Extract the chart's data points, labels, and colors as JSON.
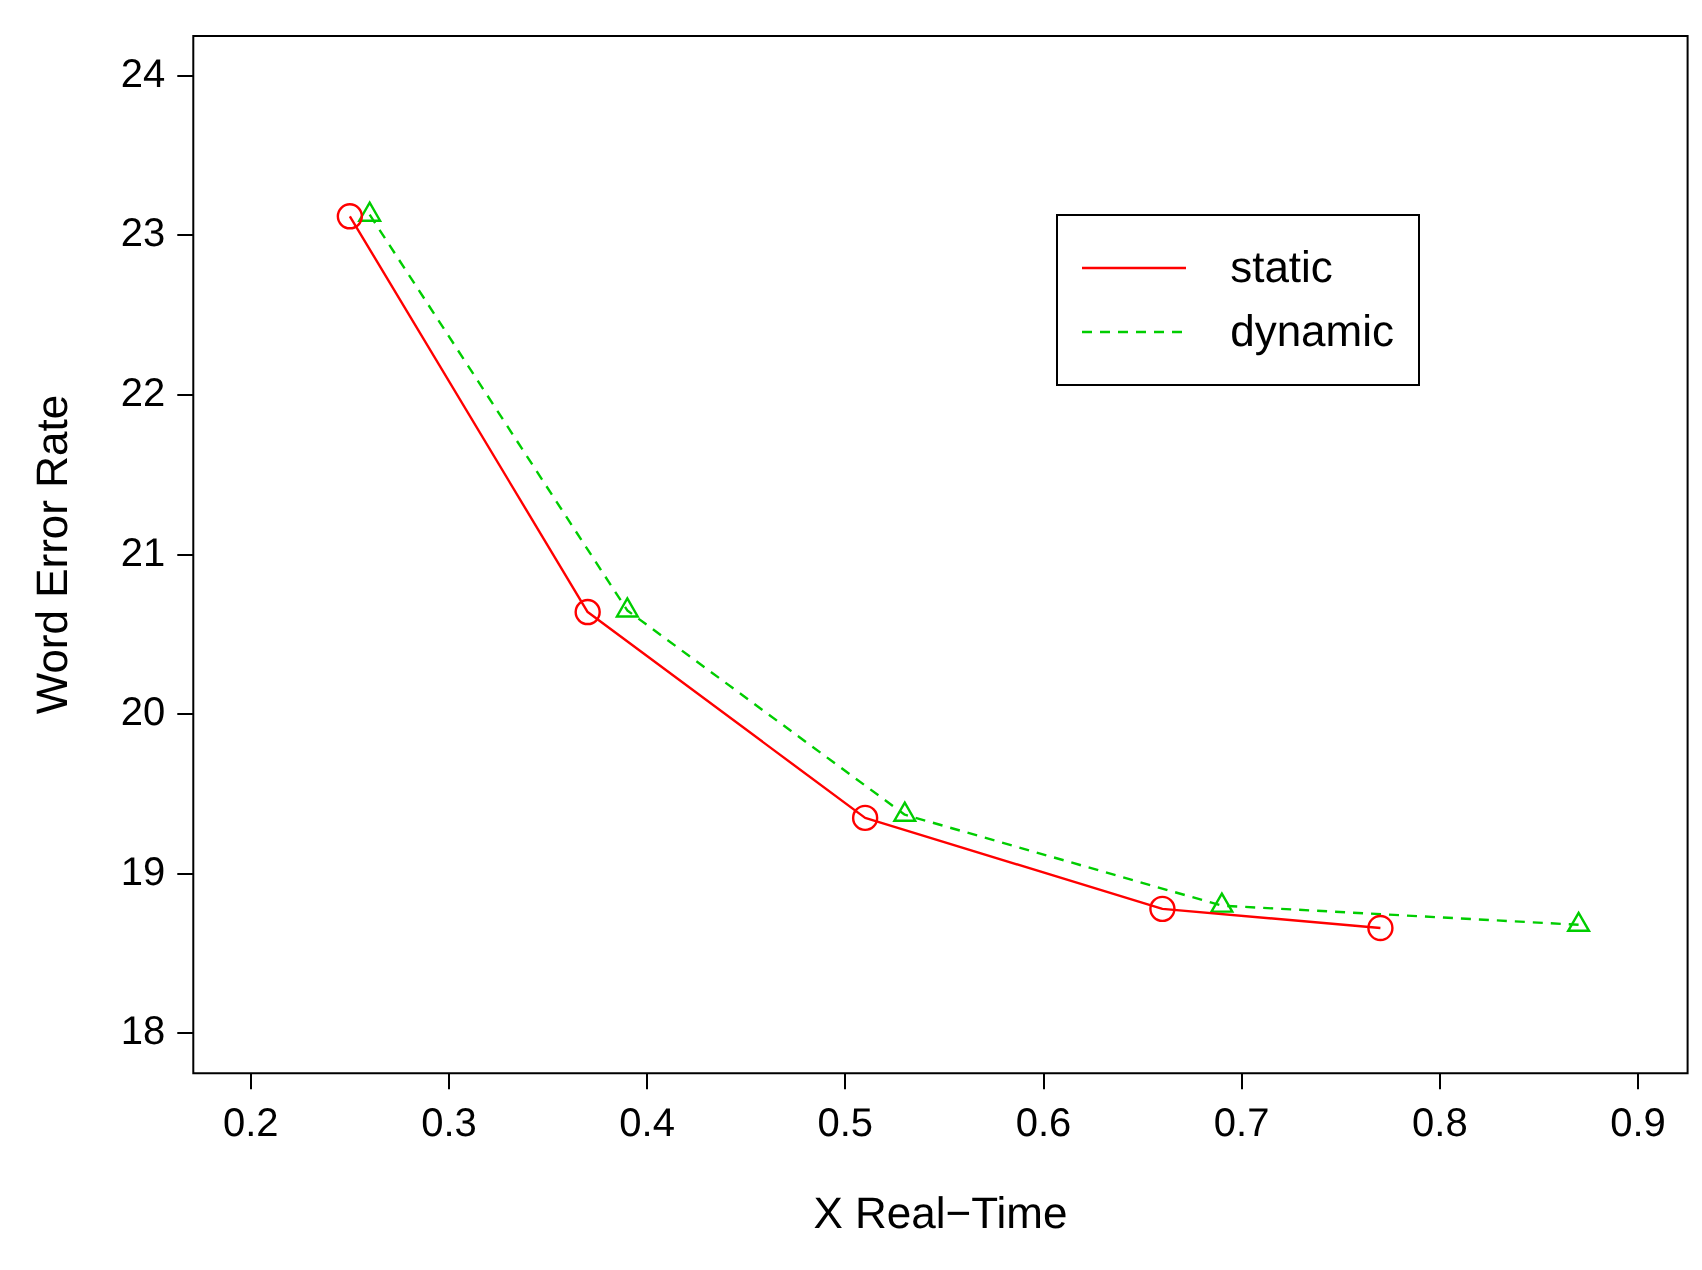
{
  "chart_data": {
    "type": "line",
    "xlabel": "X Real−Time",
    "ylabel": "Word Error Rate",
    "xlim": [
      0.171,
      0.925
    ],
    "xticks": [
      0.2,
      0.3,
      0.4,
      0.5,
      0.6,
      0.7,
      0.8,
      0.9
    ],
    "ylim": [
      17.75,
      24.25
    ],
    "yticks": [
      18,
      19,
      20,
      21,
      22,
      23,
      24
    ],
    "grid": false,
    "legend": "top right",
    "series": [
      {
        "name": "static",
        "color": "#ff0000",
        "marker": "circle",
        "line_style": "solid",
        "x": [
          0.25,
          0.37,
          0.51,
          0.66,
          0.77
        ],
        "values": [
          23.12,
          20.64,
          19.35,
          18.78,
          18.66
        ]
      },
      {
        "name": "dynamic",
        "color": "#00cd00",
        "marker": "triangle",
        "line_style": "dashed",
        "x": [
          0.26,
          0.39,
          0.53,
          0.69,
          0.87
        ],
        "values": [
          23.13,
          20.65,
          19.37,
          18.8,
          18.68
        ]
      }
    ]
  }
}
